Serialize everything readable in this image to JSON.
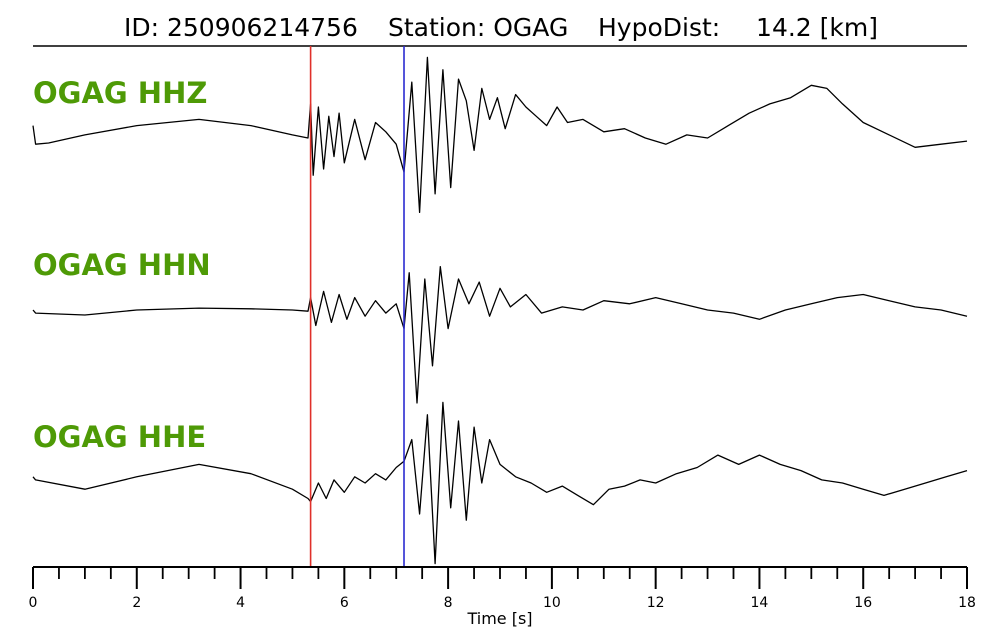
{
  "chart_data": {
    "type": "line",
    "title": {
      "id_label": "ID: 250906214756",
      "station_label": "Station: OGAG",
      "hypodist_label": "HypoDist:",
      "hypodist_value": "14.2 [km]"
    },
    "xlabel": "Time [s]",
    "xlim": [
      0,
      18
    ],
    "x_major_ticks": [
      0,
      2,
      4,
      6,
      8,
      10,
      12,
      14,
      16,
      18
    ],
    "x_major_tick_labels": [
      "0",
      "2",
      "4",
      "6",
      "8",
      "10",
      "12",
      "14",
      "16",
      "18"
    ],
    "x_minor_tick_step": 0.5,
    "grid": false,
    "channel_label_color": "#4e9a06",
    "trace_color": "#000000",
    "markers": [
      {
        "phase": "P",
        "time": 5.35,
        "color": "#e0302a"
      },
      {
        "phase": "S",
        "time": 7.15,
        "color": "#2a2ad0"
      }
    ],
    "series": [
      {
        "name": "OGAG HHZ",
        "t": [
          0,
          0.05,
          0.3,
          1.0,
          2.0,
          3.2,
          4.2,
          5.0,
          5.3,
          5.35,
          5.4,
          5.5,
          5.6,
          5.7,
          5.8,
          5.9,
          6.0,
          6.2,
          6.4,
          6.6,
          6.8,
          7.0,
          7.15,
          7.3,
          7.45,
          7.6,
          7.75,
          7.9,
          8.05,
          8.2,
          8.35,
          8.5,
          8.65,
          8.8,
          8.95,
          9.1,
          9.3,
          9.5,
          9.7,
          9.9,
          10.1,
          10.3,
          10.6,
          11.0,
          11.4,
          11.8,
          12.2,
          12.6,
          13.0,
          13.4,
          13.8,
          14.2,
          14.6,
          15.0,
          15.3,
          15.6,
          16.0,
          16.5,
          17.0,
          17.5,
          18.0
        ],
        "y": [
          0.2,
          -0.1,
          -0.08,
          0.05,
          0.2,
          0.3,
          0.2,
          0.05,
          0.0,
          0.55,
          -0.6,
          0.5,
          -0.5,
          0.35,
          -0.3,
          0.4,
          -0.4,
          0.3,
          -0.35,
          0.25,
          0.1,
          -0.1,
          -0.55,
          0.9,
          -1.2,
          1.3,
          -0.9,
          1.1,
          -0.8,
          0.95,
          0.6,
          -0.2,
          0.8,
          0.3,
          0.65,
          0.15,
          0.7,
          0.5,
          0.35,
          0.2,
          0.5,
          0.25,
          0.3,
          0.1,
          0.15,
          0.0,
          -0.1,
          0.05,
          0.0,
          0.2,
          0.4,
          0.55,
          0.65,
          0.85,
          0.8,
          0.55,
          0.25,
          0.05,
          -0.15,
          -0.1,
          -0.05
        ]
      },
      {
        "name": "OGAG HHN",
        "t": [
          0,
          0.05,
          1.0,
          2.0,
          3.2,
          4.2,
          5.0,
          5.3,
          5.35,
          5.45,
          5.6,
          5.75,
          5.9,
          6.05,
          6.2,
          6.4,
          6.6,
          6.8,
          7.0,
          7.15,
          7.25,
          7.4,
          7.55,
          7.7,
          7.85,
          8.0,
          8.2,
          8.4,
          8.6,
          8.8,
          9.0,
          9.2,
          9.5,
          9.8,
          10.2,
          10.6,
          11.0,
          11.5,
          12.0,
          12.5,
          13.0,
          13.5,
          14.0,
          14.5,
          15.0,
          15.5,
          16.0,
          16.5,
          17.0,
          17.5,
          18.0
        ],
        "y": [
          0.0,
          -0.05,
          -0.08,
          0.0,
          0.03,
          0.02,
          0.0,
          -0.02,
          0.2,
          -0.25,
          0.3,
          -0.2,
          0.25,
          -0.15,
          0.2,
          -0.1,
          0.15,
          -0.05,
          0.1,
          -0.3,
          0.6,
          -1.5,
          0.5,
          -0.9,
          0.7,
          -0.3,
          0.5,
          0.1,
          0.45,
          -0.1,
          0.35,
          0.05,
          0.25,
          -0.05,
          0.05,
          0.0,
          0.15,
          0.1,
          0.2,
          0.1,
          0.0,
          -0.05,
          -0.15,
          0.0,
          0.1,
          0.2,
          0.25,
          0.15,
          0.05,
          0.0,
          -0.1
        ]
      },
      {
        "name": "OGAG HHE",
        "t": [
          0,
          0.05,
          1.0,
          2.0,
          3.2,
          4.2,
          5.0,
          5.3,
          5.35,
          5.5,
          5.65,
          5.8,
          6.0,
          6.2,
          6.4,
          6.6,
          6.8,
          7.0,
          7.15,
          7.3,
          7.45,
          7.6,
          7.75,
          7.9,
          8.05,
          8.2,
          8.35,
          8.5,
          8.65,
          8.8,
          9.0,
          9.3,
          9.6,
          9.9,
          10.2,
          10.5,
          10.8,
          11.1,
          11.4,
          11.7,
          12.0,
          12.4,
          12.8,
          13.2,
          13.6,
          14.0,
          14.4,
          14.8,
          15.2,
          15.6,
          16.0,
          16.4,
          16.8,
          17.2,
          17.6,
          18.0
        ],
        "y": [
          0.1,
          0.05,
          -0.1,
          0.1,
          0.3,
          0.15,
          -0.1,
          -0.25,
          -0.3,
          0.0,
          -0.25,
          0.05,
          -0.15,
          0.1,
          0.0,
          0.15,
          0.05,
          0.25,
          0.35,
          0.7,
          -0.5,
          1.1,
          -1.3,
          1.3,
          -0.4,
          1.0,
          -0.6,
          0.9,
          0.0,
          0.7,
          0.3,
          0.1,
          0.0,
          -0.15,
          -0.05,
          -0.2,
          -0.35,
          -0.1,
          -0.05,
          0.05,
          0.0,
          0.15,
          0.25,
          0.45,
          0.3,
          0.45,
          0.3,
          0.2,
          0.05,
          0.0,
          -0.1,
          -0.2,
          -0.1,
          0.0,
          0.1,
          0.2
        ]
      }
    ]
  }
}
